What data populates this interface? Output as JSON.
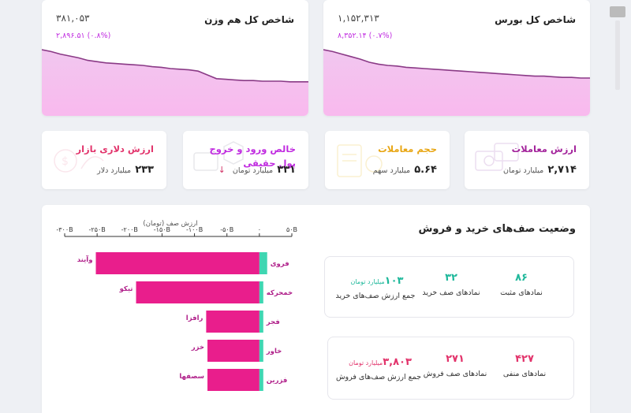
{
  "indices": [
    {
      "title": "شاخص کل هم وزن",
      "value": "۳۸۱,۰۵۳",
      "change": "۲,۸۹۶.۵۱ (۰.۸%)"
    },
    {
      "title": "شاخص کل بورس",
      "value": "۱,۱۵۲,۳۱۳",
      "change": "۸,۳۵۲.۱۴ (۰.۷%)"
    }
  ],
  "stats": [
    {
      "title": "ارزش معاملات",
      "value": "۲,۷۱۴",
      "unit": "میلیارد تومان",
      "title_color": "#a3239b"
    },
    {
      "title": "حجم معاملات",
      "value": "۵.۶۴",
      "unit": "میلیارد سهم",
      "title_color": "#e8a614"
    },
    {
      "title": "خالص ورود و خروج پول حقیقی",
      "value": "۳۳۱",
      "unit": "میلیارد تومان",
      "arrow": "↓",
      "title_color": "#c02be0"
    },
    {
      "title": "ارزش دلاری بازار",
      "value": "۲۳۳",
      "unit": "میلیارد دلار",
      "title_color": "#e2336b"
    }
  ],
  "queues_section": {
    "title": "وضعیت صف‌های خرید و فروش",
    "buy": {
      "positive_count": "۸۶",
      "positive_label": "نمادهای مثبت",
      "queue_count": "۳۲",
      "queue_label": "نمادهای صف خرید",
      "queue_value": "۱۰۳",
      "queue_value_unit": "میلیارد تومان",
      "queue_value_label": "جمع ارزش صف‌های خرید"
    },
    "sell": {
      "negative_count": "۴۲۷",
      "negative_label": "نمادهای منفی",
      "queue_count": "۲۷۱",
      "queue_label": "نمادهای صف فروش",
      "queue_value": "۳,۸۰۳",
      "queue_value_unit": "میلیارد تومان",
      "queue_value_label": "جمع ارزش صف‌های فروش"
    }
  },
  "colors": {
    "sell_bar": "#e91e8c",
    "buy_bar": "#3fd6b2",
    "accent": "#c02be0"
  },
  "chart_data": {
    "type": "bar",
    "orientation": "horizontal",
    "title": "ارزش صف (تومان)",
    "xlim": [
      -300,
      50
    ],
    "xticks": [
      -300,
      -250,
      -200,
      -150,
      -100,
      -50,
      0,
      50
    ],
    "xtick_labels": [
      "-۳۰۰B",
      "-۲۵۰B",
      "-۲۰۰B",
      "-۱۵۰B",
      "-۱۰۰B",
      "-۵۰B",
      "۰",
      "۵۰B"
    ],
    "rows": [
      {
        "buy_symbol": "فروی",
        "buy_value": 12,
        "sell_symbol": "وآیند",
        "sell_value": -252
      },
      {
        "buy_symbol": "خمحرکه",
        "buy_value": 6,
        "sell_symbol": "تیکو",
        "sell_value": -190
      },
      {
        "buy_symbol": "فجر",
        "buy_value": 6,
        "sell_symbol": "رافزا",
        "sell_value": -82
      },
      {
        "buy_symbol": "خاور",
        "buy_value": 6,
        "sell_symbol": "خزر",
        "sell_value": -80
      },
      {
        "buy_symbol": "فزرین",
        "buy_value": 6,
        "sell_symbol": "سصفها",
        "sell_value": -80
      }
    ]
  },
  "sparklines": {
    "hamvazn": [
      1.0,
      0.97,
      0.93,
      0.9,
      0.87,
      0.83,
      0.81,
      0.79,
      0.78,
      0.77,
      0.76,
      0.75,
      0.73,
      0.72,
      0.7,
      0.69,
      0.68,
      0.66,
      0.6,
      0.54,
      0.53,
      0.52,
      0.51,
      0.51,
      0.5,
      0.5,
      0.5,
      0.49,
      0.49,
      0.49
    ],
    "boors": [
      1.0,
      0.97,
      0.93,
      0.89,
      0.85,
      0.8,
      0.77,
      0.75,
      0.74,
      0.72,
      0.71,
      0.7,
      0.69,
      0.68,
      0.67,
      0.66,
      0.65,
      0.64,
      0.63,
      0.62,
      0.61,
      0.6,
      0.59,
      0.58,
      0.58,
      0.57,
      0.56,
      0.56,
      0.55,
      0.55
    ]
  }
}
